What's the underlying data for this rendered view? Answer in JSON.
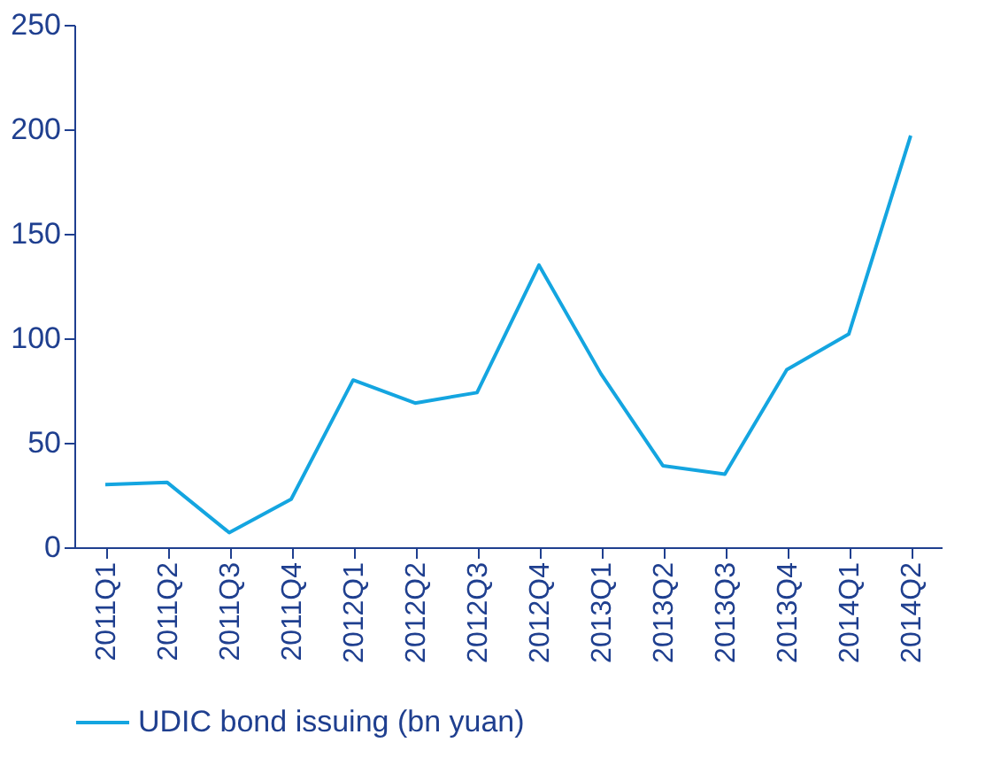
{
  "chart_data": {
    "type": "line",
    "categories": [
      "2011Q1",
      "2011Q2",
      "2011Q3",
      "2011Q4",
      "2012Q1",
      "2012Q2",
      "2012Q3",
      "2012Q4",
      "2013Q1",
      "2013Q2",
      "2013Q3",
      "2013Q4",
      "2014Q1",
      "2014Q2"
    ],
    "series": [
      {
        "name": "UDIC bond issuing (bn yuan)",
        "color": "#14a5e0",
        "values": [
          30,
          31,
          7,
          23,
          80,
          69,
          74,
          135,
          83,
          39,
          35,
          85,
          102,
          197
        ]
      }
    ],
    "ylim": [
      0,
      250
    ],
    "yticks": [
      0,
      50,
      100,
      150,
      200,
      250
    ],
    "grid": false,
    "legend": "bottom",
    "marker": "none",
    "line_style": "solid"
  }
}
